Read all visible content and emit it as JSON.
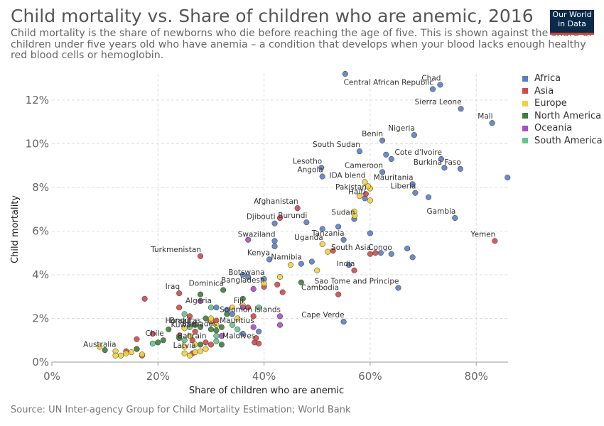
{
  "header": {
    "title": "Child mortality vs. Share of children who are anemic, 2016",
    "subtitle": "Child mortality is the share of newborns who die before reaching the age of five. This is shown against the share of children under five years old who have anemia – a condition that develops when your blood lacks enough healthy red blood cells or hemoglobin.",
    "logo_line1": "Our World",
    "logo_line2": "in Data"
  },
  "footer": {
    "source": "Source: UN Inter-agency Group for Child Mortality Estimation; World Bank"
  },
  "colors": {
    "Africa": "#5b7ec3",
    "Asia": "#cf4a4a",
    "Europe": "#f3d03e",
    "North America": "#3e7e3e",
    "Oceania": "#a84fc0",
    "South America": "#66c28a"
  },
  "chart_data": {
    "type": "scatter",
    "xlabel": "Share of children who are anemic",
    "ylabel": "Child mortality",
    "xlim": [
      0,
      86
    ],
    "ylim": [
      0,
      13.2
    ],
    "x_ticks": [
      0,
      20,
      40,
      60,
      80
    ],
    "x_tick_labels": [
      "0%",
      "20%",
      "40%",
      "60%",
      "80%"
    ],
    "y_ticks": [
      0,
      2,
      4,
      6,
      8,
      10,
      12
    ],
    "y_tick_labels": [
      "0%",
      "2%",
      "4%",
      "6%",
      "8%",
      "10%",
      "12%"
    ],
    "grid": true,
    "legend": "right",
    "series": [
      {
        "name": "Africa",
        "points": [
          [
            55.3,
            13.2,
            ""
          ],
          [
            71.8,
            12.5,
            "Central African Republic"
          ],
          [
            73.2,
            12.7,
            "Chad"
          ],
          [
            77.1,
            11.6,
            "Sierra Leone"
          ],
          [
            83.0,
            10.95,
            "Mali"
          ],
          [
            68.3,
            10.4,
            "Nigeria"
          ],
          [
            62.3,
            10.15,
            "Benin"
          ],
          [
            58.0,
            9.65,
            "South Sudan"
          ],
          [
            63.0,
            9.5,
            ""
          ],
          [
            64.0,
            9.3,
            ""
          ],
          [
            73.4,
            9.3,
            "Cote d'Ivoire"
          ],
          [
            50.8,
            8.9,
            "Lesotho"
          ],
          [
            62.3,
            8.7,
            "Cameroon"
          ],
          [
            77.0,
            8.85,
            "Burkina Faso"
          ],
          [
            51.0,
            8.5,
            "Angola"
          ],
          [
            85.9,
            8.45,
            ""
          ],
          [
            74.0,
            8.9,
            ""
          ],
          [
            68.0,
            8.15,
            "Mauritania"
          ],
          [
            68.5,
            7.75,
            "Liberia"
          ],
          [
            71.0,
            7.55,
            ""
          ],
          [
            59.0,
            7.5,
            "Haiti"
          ],
          [
            57.0,
            6.55,
            "Sudan"
          ],
          [
            76.0,
            6.6,
            "Gambia"
          ],
          [
            48.0,
            6.4,
            "Burundi"
          ],
          [
            42.0,
            6.35,
            "Djibouti"
          ],
          [
            54.0,
            6.2,
            ""
          ],
          [
            51.0,
            6.1,
            ""
          ],
          [
            55.0,
            5.6,
            "Tanzania"
          ],
          [
            60.0,
            5.9,
            ""
          ],
          [
            42.0,
            5.55,
            "Swaziland"
          ],
          [
            42.0,
            5.3,
            ""
          ],
          [
            64.0,
            4.95,
            "Congo"
          ],
          [
            62.0,
            5.0,
            ""
          ],
          [
            67.0,
            5.2,
            ""
          ],
          [
            68.0,
            4.8,
            ""
          ],
          [
            41.0,
            4.7,
            "Kenya"
          ],
          [
            47.0,
            4.5,
            "Namibia"
          ],
          [
            49.0,
            4.6,
            ""
          ],
          [
            56.0,
            4.45,
            ""
          ],
          [
            40.0,
            3.8,
            "Botswana"
          ],
          [
            37.0,
            3.9,
            ""
          ],
          [
            36.0,
            4.0,
            ""
          ],
          [
            65.3,
            3.4,
            "Sao Tome and Principe"
          ],
          [
            33.0,
            2.4,
            ""
          ],
          [
            34.0,
            2.2,
            ""
          ],
          [
            55.0,
            1.85,
            "Cape Verde"
          ],
          [
            39.0,
            1.4,
            ""
          ],
          [
            36.0,
            1.3,
            ""
          ],
          [
            31.0,
            2.5,
            ""
          ]
        ]
      },
      {
        "name": "Asia",
        "points": [
          [
            46.3,
            7.05,
            "Afghanistan"
          ],
          [
            59.2,
            7.7,
            "Pakistan"
          ],
          [
            43.0,
            6.6,
            ""
          ],
          [
            83.5,
            5.55,
            "Yemen"
          ],
          [
            28.0,
            4.85,
            "Turkmenistan"
          ],
          [
            60.0,
            4.95,
            "South Asia"
          ],
          [
            61.0,
            5.0,
            ""
          ],
          [
            53.0,
            5.1,
            ""
          ],
          [
            57.0,
            4.2,
            "India"
          ],
          [
            40.0,
            3.45,
            "Bangladesh"
          ],
          [
            42.5,
            3.55,
            ""
          ],
          [
            43.5,
            3.2,
            ""
          ],
          [
            54.0,
            3.1,
            "Cambodia"
          ],
          [
            24.0,
            3.15,
            "Iraq"
          ],
          [
            17.5,
            2.9,
            ""
          ],
          [
            24.0,
            2.5,
            ""
          ],
          [
            26.0,
            2.1,
            ""
          ],
          [
            37.0,
            2.5,
            ""
          ],
          [
            38.0,
            2.1,
            ""
          ],
          [
            30.0,
            1.85,
            ""
          ],
          [
            31.0,
            1.9,
            ""
          ],
          [
            16.0,
            1.05,
            ""
          ],
          [
            19.0,
            1.3,
            ""
          ],
          [
            27.0,
            1.4,
            "Kuwait"
          ],
          [
            29.0,
            0.9,
            "Bahrain"
          ],
          [
            30.0,
            0.8,
            ""
          ],
          [
            38.2,
            0.9,
            "Maldives"
          ],
          [
            39.0,
            0.85,
            ""
          ],
          [
            38.5,
            1.1,
            ""
          ],
          [
            17.0,
            0.3,
            ""
          ],
          [
            14.0,
            0.5,
            ""
          ],
          [
            24.0,
            1.2,
            ""
          ],
          [
            26.5,
            1.0,
            ""
          ],
          [
            26.5,
            0.4,
            ""
          ]
        ]
      },
      {
        "name": "Europe",
        "points": [
          [
            59.0,
            8.25,
            "IDA blend"
          ],
          [
            60.0,
            7.95,
            ""
          ],
          [
            59.6,
            8.05,
            ""
          ],
          [
            58.0,
            7.6,
            ""
          ],
          [
            60.0,
            7.4,
            ""
          ],
          [
            57.0,
            6.9,
            ""
          ],
          [
            57.1,
            6.7,
            ""
          ],
          [
            51.0,
            5.4,
            "Uganda"
          ],
          [
            52.0,
            5.05,
            ""
          ],
          [
            45.0,
            4.45,
            ""
          ],
          [
            43.0,
            3.9,
            ""
          ],
          [
            40.0,
            3.6,
            ""
          ],
          [
            50.0,
            4.2,
            ""
          ],
          [
            36.0,
            2.6,
            ""
          ],
          [
            34.0,
            2.5,
            ""
          ],
          [
            35.0,
            2.0,
            ""
          ],
          [
            30.0,
            1.9,
            ""
          ],
          [
            31.0,
            1.7,
            ""
          ],
          [
            30.0,
            2.0,
            ""
          ],
          [
            25.0,
            1.55,
            ""
          ],
          [
            26.0,
            1.2,
            ""
          ],
          [
            25.0,
            0.7,
            ""
          ],
          [
            27.0,
            0.45,
            "Latvia"
          ],
          [
            26.0,
            0.3,
            ""
          ],
          [
            28.0,
            0.5,
            ""
          ],
          [
            25.0,
            0.4,
            ""
          ],
          [
            9.0,
            0.7,
            ""
          ],
          [
            12.0,
            0.5,
            "Australia"
          ],
          [
            13.0,
            0.3,
            ""
          ],
          [
            14.0,
            0.4,
            ""
          ],
          [
            15.0,
            0.45,
            ""
          ],
          [
            16.0,
            0.6,
            ""
          ],
          [
            17.0,
            0.35,
            ""
          ],
          [
            12.0,
            0.3,
            ""
          ],
          [
            29.0,
            0.6,
            ""
          ],
          [
            27.0,
            0.8,
            ""
          ]
        ]
      },
      {
        "name": "North America",
        "points": [
          [
            32.3,
            3.3,
            "Dominica"
          ],
          [
            36.0,
            2.9,
            ""
          ],
          [
            28.0,
            3.1,
            ""
          ],
          [
            47.0,
            3.65,
            ""
          ],
          [
            33.0,
            2.2,
            ""
          ],
          [
            29.0,
            2.0,
            ""
          ],
          [
            28.0,
            1.6,
            "Honduras"
          ],
          [
            31.0,
            1.45,
            "Barbados"
          ],
          [
            30.0,
            1.5,
            ""
          ],
          [
            32.0,
            1.6,
            ""
          ],
          [
            22.0,
            1.5,
            ""
          ],
          [
            21.0,
            1.0,
            "Chile"
          ],
          [
            20.0,
            0.9,
            ""
          ],
          [
            24.0,
            1.1,
            ""
          ],
          [
            32.0,
            0.8,
            ""
          ],
          [
            28.0,
            0.8,
            ""
          ],
          [
            10.0,
            0.55,
            ""
          ],
          [
            16.0,
            0.6,
            ""
          ],
          [
            27.0,
            1.7,
            ""
          ]
        ]
      },
      {
        "name": "Oceania",
        "points": [
          [
            37.0,
            5.6,
            ""
          ],
          [
            38.0,
            3.35,
            ""
          ],
          [
            43.0,
            2.1,
            "Solomon Islands"
          ],
          [
            38.0,
            1.6,
            "Mauritius"
          ],
          [
            36.0,
            2.5,
            "Fiji"
          ],
          [
            43.0,
            1.7,
            ""
          ],
          [
            28.0,
            2.8,
            ""
          ],
          [
            32.0,
            1.2,
            ""
          ]
        ]
      },
      {
        "name": "South America",
        "points": [
          [
            30.0,
            2.5,
            "Algeria"
          ],
          [
            25.0,
            2.2,
            ""
          ],
          [
            26.0,
            1.6,
            "Brazil"
          ],
          [
            34.0,
            1.7,
            ""
          ],
          [
            31.0,
            1.2,
            ""
          ],
          [
            19.0,
            0.85,
            ""
          ],
          [
            31.0,
            0.95,
            ""
          ],
          [
            39.0,
            2.5,
            ""
          ],
          [
            35.0,
            1.5,
            ""
          ],
          [
            25.0,
            1.0,
            ""
          ]
        ]
      }
    ]
  }
}
